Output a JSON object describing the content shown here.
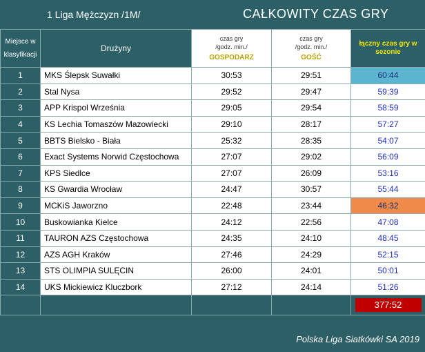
{
  "header": {
    "league": "1 Liga Mężczyzn /1M/",
    "title": "CAŁKOWITY CZAS GRY"
  },
  "columns": {
    "position_line1": "Miejsce w",
    "position_line2": "klasyfikacji",
    "team": "Drużyny",
    "home_line1": "czas gry",
    "home_line2": "/godz. min./",
    "home_label": "GOSPODARZ",
    "away_line1": "czas gry",
    "away_line2": "/godz. min./",
    "away_label": "GOŚĆ",
    "total_line1": "łączny czas gry w",
    "total_line2": "sezonie"
  },
  "rows": [
    {
      "pos": "1",
      "team": "MKS Ślepsk Suwałki",
      "home": "30:53",
      "away": "29:51",
      "total": "60:44",
      "highlight": "best"
    },
    {
      "pos": "2",
      "team": "Stal Nysa",
      "home": "29:52",
      "away": "29:47",
      "total": "59:39",
      "highlight": ""
    },
    {
      "pos": "3",
      "team": "APP Krispol Września",
      "home": "29:05",
      "away": "29:54",
      "total": "58:59",
      "highlight": ""
    },
    {
      "pos": "4",
      "team": "KS Lechia Tomaszów Mazowiecki",
      "home": "29:10",
      "away": "28:17",
      "total": "57:27",
      "highlight": ""
    },
    {
      "pos": "5",
      "team": "BBTS Bielsko - Biała",
      "home": "25:32",
      "away": "28:35",
      "total": "54:07",
      "highlight": ""
    },
    {
      "pos": "6",
      "team": "Exact Systems Norwid Częstochowa",
      "home": "27:07",
      "away": "29:02",
      "total": "56:09",
      "highlight": ""
    },
    {
      "pos": "7",
      "team": "KPS Siedlce",
      "home": "27:07",
      "away": "26:09",
      "total": "53:16",
      "highlight": ""
    },
    {
      "pos": "8",
      "team": "KS Gwardia Wrocław",
      "home": "24:47",
      "away": "30:57",
      "total": "55:44",
      "highlight": ""
    },
    {
      "pos": "9",
      "team": "MCKiS Jaworzno",
      "home": "22:48",
      "away": "23:44",
      "total": "46:32",
      "highlight": "worst"
    },
    {
      "pos": "10",
      "team": "Buskowianka Kielce",
      "home": "24:12",
      "away": "22:56",
      "total": "47:08",
      "highlight": ""
    },
    {
      "pos": "11",
      "team": "TAURON AZS Częstochowa",
      "home": "24:35",
      "away": "24:10",
      "total": "48:45",
      "highlight": ""
    },
    {
      "pos": "12",
      "team": "AZS AGH Kraków",
      "home": "27:46",
      "away": "24:29",
      "total": "52:15",
      "highlight": ""
    },
    {
      "pos": "13",
      "team": "STS OLIMPIA SULĘCIN",
      "home": "26:00",
      "away": "24:01",
      "total": "50:01",
      "highlight": ""
    },
    {
      "pos": "14",
      "team": "UKS Mickiewicz Kluczbork",
      "home": "27:12",
      "away": "24:14",
      "total": "51:26",
      "highlight": ""
    }
  ],
  "summary": {
    "total": "377:52"
  },
  "footer": {
    "text": "Polska Liga Siatkówki SA 2019"
  },
  "colors": {
    "background": "#2c5f66",
    "best": "#5bb5cf",
    "worst": "#f08a4b",
    "sum": "#c00000",
    "total_text": "#1f2fbf",
    "header_accent": "#f2e600"
  }
}
